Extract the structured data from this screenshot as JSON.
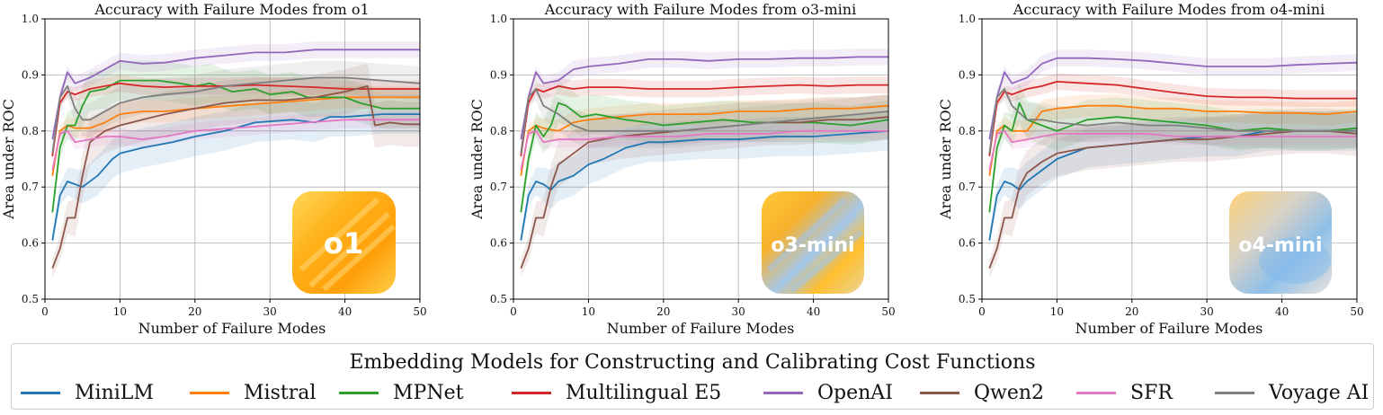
{
  "series_colors": {
    "MiniLM": "#1f77b4",
    "Mistral": "#ff7f0e",
    "MPNet": "#2ca02c",
    "Multilingual E5": "#d62728",
    "OpenAI": "#9467bd",
    "Qwen2": "#8c564b",
    "SFR": "#e377c2",
    "Voyage AI": "#7f7f7f"
  },
  "legend": {
    "title": "Embedding Models for Constructing and Calibrating Cost Functions",
    "items": [
      "MiniLM",
      "Mistral",
      "MPNet",
      "Multilingual E5",
      "OpenAI",
      "Qwen2",
      "SFR",
      "Voyage AI"
    ]
  },
  "chart_data": [
    {
      "type": "line",
      "title": "Accuracy with Failure Modes from o1",
      "xlabel": "Number of Failure Modes",
      "ylabel": "Area under ROC",
      "xlim": [
        0,
        50
      ],
      "ylim": [
        0.5,
        1.0
      ],
      "xticks": [
        0,
        10,
        20,
        30,
        40,
        50
      ],
      "yticks": [
        0.5,
        0.6,
        0.7,
        0.8,
        0.9,
        1.0
      ],
      "badge": "o1",
      "series": [
        {
          "name": "MiniLM",
          "x": [
            1,
            2,
            3,
            5,
            7,
            9,
            10,
            13,
            17,
            20,
            24,
            28,
            33,
            36,
            38,
            40,
            45,
            50
          ],
          "y": [
            0.605,
            0.685,
            0.71,
            0.7,
            0.72,
            0.75,
            0.76,
            0.77,
            0.78,
            0.79,
            0.8,
            0.815,
            0.82,
            0.815,
            0.825,
            0.825,
            0.83,
            0.83
          ]
        },
        {
          "name": "Mistral",
          "x": [
            1,
            2,
            3,
            4,
            6,
            8,
            10,
            13,
            16,
            20,
            25,
            30,
            35,
            40,
            45,
            50
          ],
          "y": [
            0.72,
            0.8,
            0.81,
            0.805,
            0.805,
            0.815,
            0.83,
            0.835,
            0.835,
            0.84,
            0.845,
            0.85,
            0.855,
            0.86,
            0.86,
            0.86
          ]
        },
        {
          "name": "MPNet",
          "x": [
            1,
            2,
            3,
            4,
            5,
            6,
            8,
            10,
            12,
            15,
            18,
            20,
            22,
            25,
            28,
            30,
            33,
            35,
            38,
            40,
            42,
            45,
            50
          ],
          "y": [
            0.655,
            0.77,
            0.81,
            0.81,
            0.845,
            0.87,
            0.875,
            0.89,
            0.89,
            0.89,
            0.885,
            0.88,
            0.885,
            0.87,
            0.875,
            0.865,
            0.87,
            0.86,
            0.86,
            0.86,
            0.85,
            0.84,
            0.84
          ]
        },
        {
          "name": "Multilingual E5",
          "x": [
            1,
            2,
            3,
            4,
            6,
            8,
            10,
            13,
            16,
            20,
            24,
            28,
            32,
            36,
            40,
            45,
            50
          ],
          "y": [
            0.755,
            0.85,
            0.87,
            0.865,
            0.875,
            0.88,
            0.885,
            0.88,
            0.878,
            0.88,
            0.88,
            0.882,
            0.88,
            0.878,
            0.875,
            0.875,
            0.875
          ]
        },
        {
          "name": "OpenAI",
          "x": [
            1,
            2,
            3,
            4,
            6,
            8,
            10,
            13,
            16,
            20,
            24,
            28,
            32,
            36,
            40,
            45,
            50
          ],
          "y": [
            0.785,
            0.86,
            0.905,
            0.885,
            0.895,
            0.91,
            0.925,
            0.92,
            0.922,
            0.93,
            0.935,
            0.94,
            0.94,
            0.945,
            0.945,
            0.945,
            0.945
          ]
        },
        {
          "name": "Qwen2",
          "x": [
            1,
            2,
            3,
            4,
            5,
            6,
            8,
            10,
            13,
            16,
            20,
            24,
            28,
            32,
            36,
            40,
            43,
            44,
            46,
            48,
            50
          ],
          "y": [
            0.555,
            0.59,
            0.645,
            0.645,
            0.72,
            0.78,
            0.8,
            0.81,
            0.82,
            0.83,
            0.84,
            0.85,
            0.855,
            0.855,
            0.86,
            0.87,
            0.88,
            0.81,
            0.815,
            0.812,
            0.812
          ]
        },
        {
          "name": "SFR",
          "x": [
            1,
            2,
            3,
            4,
            6,
            8,
            10,
            13,
            16,
            20,
            25,
            30,
            35,
            40,
            45,
            50
          ],
          "y": [
            0.73,
            0.795,
            0.8,
            0.78,
            0.785,
            0.79,
            0.79,
            0.785,
            0.79,
            0.8,
            0.805,
            0.81,
            0.815,
            0.82,
            0.82,
            0.82
          ]
        },
        {
          "name": "Voyage AI",
          "x": [
            1,
            2,
            3,
            4,
            5,
            6,
            8,
            10,
            13,
            16,
            20,
            24,
            28,
            32,
            36,
            40,
            45,
            50
          ],
          "y": [
            0.76,
            0.86,
            0.88,
            0.84,
            0.82,
            0.82,
            0.835,
            0.85,
            0.86,
            0.865,
            0.87,
            0.88,
            0.885,
            0.89,
            0.895,
            0.895,
            0.89,
            0.885
          ]
        }
      ]
    },
    {
      "type": "line",
      "title": "Accuracy with Failure Modes from o3-mini",
      "xlabel": "Number of Failure Modes",
      "ylabel": "Area under ROC",
      "xlim": [
        0,
        50
      ],
      "ylim": [
        0.5,
        1.0
      ],
      "xticks": [
        0,
        10,
        20,
        30,
        40,
        50
      ],
      "yticks": [
        0.5,
        0.6,
        0.7,
        0.8,
        0.9,
        1.0
      ],
      "badge": "o3-mini",
      "series": [
        {
          "name": "MiniLM",
          "x": [
            1,
            2,
            3,
            4,
            5,
            6,
            8,
            10,
            12,
            15,
            18,
            20,
            25,
            30,
            35,
            40,
            45,
            50
          ],
          "y": [
            0.605,
            0.685,
            0.71,
            0.705,
            0.695,
            0.71,
            0.72,
            0.74,
            0.75,
            0.77,
            0.78,
            0.78,
            0.785,
            0.785,
            0.79,
            0.79,
            0.795,
            0.8
          ]
        },
        {
          "name": "Mistral",
          "x": [
            1,
            2,
            3,
            4,
            6,
            8,
            10,
            14,
            18,
            22,
            26,
            30,
            35,
            40,
            45,
            50
          ],
          "y": [
            0.72,
            0.8,
            0.81,
            0.805,
            0.8,
            0.815,
            0.82,
            0.825,
            0.83,
            0.83,
            0.83,
            0.835,
            0.835,
            0.84,
            0.84,
            0.845
          ]
        },
        {
          "name": "MPNet",
          "x": [
            1,
            2,
            3,
            4,
            5,
            6,
            7,
            9,
            11,
            13,
            15,
            18,
            20,
            24,
            28,
            32,
            36,
            40,
            45,
            50
          ],
          "y": [
            0.655,
            0.75,
            0.81,
            0.79,
            0.81,
            0.85,
            0.845,
            0.825,
            0.83,
            0.825,
            0.82,
            0.815,
            0.81,
            0.815,
            0.82,
            0.815,
            0.815,
            0.815,
            0.81,
            0.82
          ]
        },
        {
          "name": "Multilingual E5",
          "x": [
            1,
            2,
            3,
            4,
            6,
            8,
            10,
            14,
            18,
            22,
            26,
            30,
            34,
            38,
            42,
            46,
            50
          ],
          "y": [
            0.755,
            0.85,
            0.875,
            0.87,
            0.88,
            0.875,
            0.878,
            0.878,
            0.875,
            0.875,
            0.875,
            0.878,
            0.88,
            0.882,
            0.88,
            0.882,
            0.882
          ]
        },
        {
          "name": "OpenAI",
          "x": [
            1,
            2,
            3,
            4,
            6,
            8,
            10,
            14,
            18,
            22,
            26,
            30,
            34,
            38,
            42,
            46,
            50
          ],
          "y": [
            0.785,
            0.86,
            0.905,
            0.885,
            0.89,
            0.91,
            0.915,
            0.92,
            0.928,
            0.928,
            0.925,
            0.928,
            0.928,
            0.93,
            0.93,
            0.932,
            0.932
          ]
        },
        {
          "name": "Qwen2",
          "x": [
            1,
            2,
            3,
            4,
            5,
            6,
            8,
            10,
            14,
            18,
            22,
            26,
            30,
            34,
            38,
            42,
            46,
            50
          ],
          "y": [
            0.555,
            0.59,
            0.645,
            0.645,
            0.7,
            0.74,
            0.76,
            0.78,
            0.79,
            0.795,
            0.8,
            0.805,
            0.81,
            0.815,
            0.815,
            0.82,
            0.82,
            0.825
          ]
        },
        {
          "name": "SFR",
          "x": [
            1,
            2,
            3,
            4,
            6,
            8,
            10,
            14,
            18,
            22,
            26,
            30,
            34,
            38,
            42,
            46,
            50
          ],
          "y": [
            0.73,
            0.795,
            0.8,
            0.78,
            0.785,
            0.785,
            0.785,
            0.79,
            0.79,
            0.79,
            0.795,
            0.795,
            0.795,
            0.8,
            0.8,
            0.8,
            0.8
          ]
        },
        {
          "name": "Voyage AI",
          "x": [
            1,
            2,
            3,
            4,
            6,
            8,
            10,
            14,
            18,
            22,
            26,
            30,
            34,
            38,
            42,
            46,
            50
          ],
          "y": [
            0.76,
            0.86,
            0.875,
            0.845,
            0.83,
            0.81,
            0.8,
            0.8,
            0.8,
            0.8,
            0.805,
            0.81,
            0.815,
            0.82,
            0.825,
            0.83,
            0.835
          ]
        }
      ]
    },
    {
      "type": "line",
      "title": "Accuracy with Failure Modes from o4-mini",
      "xlabel": "Number of Failure Modes",
      "ylabel": "Area under ROC",
      "xlim": [
        0,
        50
      ],
      "ylim": [
        0.5,
        1.0
      ],
      "xticks": [
        0,
        10,
        20,
        30,
        40,
        50
      ],
      "yticks": [
        0.5,
        0.6,
        0.7,
        0.8,
        0.9,
        1.0
      ],
      "badge": "o4-mini",
      "series": [
        {
          "name": "MiniLM",
          "x": [
            1,
            2,
            3,
            4,
            5,
            6,
            8,
            10,
            14,
            18,
            22,
            26,
            30,
            34,
            38,
            42,
            46,
            50
          ],
          "y": [
            0.605,
            0.685,
            0.71,
            0.705,
            0.695,
            0.71,
            0.73,
            0.75,
            0.77,
            0.775,
            0.78,
            0.785,
            0.79,
            0.79,
            0.8,
            0.8,
            0.8,
            0.8
          ]
        },
        {
          "name": "Mistral",
          "x": [
            1,
            2,
            3,
            4,
            6,
            8,
            10,
            14,
            18,
            22,
            26,
            30,
            34,
            38,
            42,
            46,
            50
          ],
          "y": [
            0.72,
            0.8,
            0.81,
            0.8,
            0.8,
            0.835,
            0.84,
            0.845,
            0.845,
            0.84,
            0.84,
            0.835,
            0.835,
            0.832,
            0.832,
            0.83,
            0.835
          ]
        },
        {
          "name": "MPNet",
          "x": [
            1,
            2,
            3,
            4,
            5,
            6,
            8,
            10,
            14,
            18,
            22,
            26,
            30,
            34,
            38,
            42,
            46,
            50
          ],
          "y": [
            0.655,
            0.77,
            0.81,
            0.8,
            0.85,
            0.82,
            0.81,
            0.8,
            0.82,
            0.825,
            0.82,
            0.815,
            0.81,
            0.8,
            0.805,
            0.8,
            0.8,
            0.805
          ]
        },
        {
          "name": "Multilingual E5",
          "x": [
            1,
            2,
            3,
            4,
            6,
            8,
            10,
            14,
            18,
            22,
            26,
            30,
            34,
            38,
            42,
            46,
            50
          ],
          "y": [
            0.755,
            0.85,
            0.87,
            0.865,
            0.875,
            0.88,
            0.888,
            0.885,
            0.882,
            0.875,
            0.868,
            0.862,
            0.86,
            0.86,
            0.858,
            0.858,
            0.858
          ]
        },
        {
          "name": "OpenAI",
          "x": [
            1,
            2,
            3,
            4,
            6,
            8,
            10,
            14,
            18,
            22,
            26,
            30,
            34,
            38,
            42,
            46,
            50
          ],
          "y": [
            0.785,
            0.86,
            0.905,
            0.885,
            0.895,
            0.92,
            0.93,
            0.93,
            0.928,
            0.925,
            0.92,
            0.915,
            0.915,
            0.915,
            0.918,
            0.92,
            0.922
          ]
        },
        {
          "name": "Qwen2",
          "x": [
            1,
            2,
            3,
            4,
            5,
            6,
            8,
            10,
            14,
            18,
            22,
            26,
            30,
            34,
            38,
            42,
            46,
            50
          ],
          "y": [
            0.555,
            0.59,
            0.645,
            0.645,
            0.7,
            0.725,
            0.745,
            0.76,
            0.77,
            0.775,
            0.78,
            0.785,
            0.785,
            0.79,
            0.795,
            0.8,
            0.8,
            0.795
          ]
        },
        {
          "name": "SFR",
          "x": [
            1,
            2,
            3,
            4,
            6,
            8,
            10,
            14,
            18,
            22,
            26,
            30,
            34,
            38,
            42,
            46,
            50
          ],
          "y": [
            0.73,
            0.795,
            0.8,
            0.78,
            0.785,
            0.79,
            0.795,
            0.795,
            0.795,
            0.795,
            0.79,
            0.79,
            0.79,
            0.79,
            0.79,
            0.79,
            0.79
          ]
        },
        {
          "name": "Voyage AI",
          "x": [
            1,
            2,
            3,
            4,
            6,
            8,
            10,
            14,
            18,
            22,
            26,
            30,
            34,
            38,
            42,
            46,
            50
          ],
          "y": [
            0.76,
            0.86,
            0.875,
            0.845,
            0.82,
            0.82,
            0.815,
            0.81,
            0.815,
            0.81,
            0.81,
            0.805,
            0.8,
            0.8,
            0.8,
            0.8,
            0.8
          ]
        }
      ]
    }
  ]
}
